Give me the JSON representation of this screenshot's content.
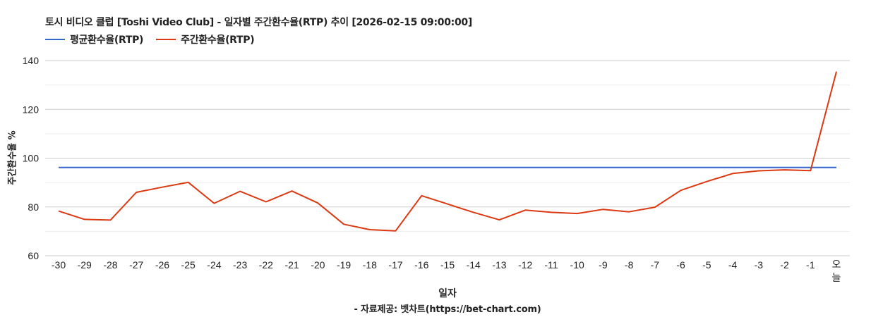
{
  "chart_data": {
    "type": "line",
    "title": "토시 비디오 클럽 [Toshi Video Club] - 일자별 주간환수율(RTP) 추이 [2026-02-15 09:00:00]",
    "xlabel": "일자",
    "ylabel": "주간환수율 %",
    "source": "- 자료제공: 벳차트(https://bet-chart.com)",
    "ylim": [
      60,
      140
    ],
    "yticks": [
      60,
      80,
      100,
      120,
      140
    ],
    "minor_gridlines": [
      70,
      90,
      110,
      130
    ],
    "grid": true,
    "legend_position": "top-left",
    "x": [
      "-30",
      "-29",
      "-28",
      "-27",
      "-26",
      "-25",
      "-24",
      "-23",
      "-22",
      "-21",
      "-20",
      "-19",
      "-18",
      "-17",
      "-16",
      "-15",
      "-14",
      "-13",
      "-12",
      "-11",
      "-10",
      "-9",
      "-8",
      "-7",
      "-6",
      "-5",
      "-4",
      "-3",
      "-2",
      "-1",
      "오늘"
    ],
    "series": [
      {
        "name": "평균환수율(RTP)",
        "color": "#3366cc",
        "values": [
          96.2,
          96.2,
          96.2,
          96.2,
          96.2,
          96.2,
          96.2,
          96.2,
          96.2,
          96.2,
          96.2,
          96.2,
          96.2,
          96.2,
          96.2,
          96.2,
          96.2,
          96.2,
          96.2,
          96.2,
          96.2,
          96.2,
          96.2,
          96.2,
          96.2,
          96.2,
          96.2,
          96.2,
          96.2,
          96.2,
          96.2
        ]
      },
      {
        "name": "주간환수율(RTP)",
        "color": "#dc3912",
        "values": [
          78.3,
          74.9,
          74.6,
          86.0,
          88.1,
          90.1,
          81.5,
          86.4,
          82.1,
          86.5,
          81.6,
          72.9,
          70.7,
          70.2,
          84.6,
          81.2,
          77.8,
          74.7,
          78.7,
          77.8,
          77.3,
          79.0,
          78.0,
          79.9,
          86.8,
          90.4,
          93.7,
          94.8,
          95.2,
          94.9,
          135.5
        ]
      }
    ]
  }
}
